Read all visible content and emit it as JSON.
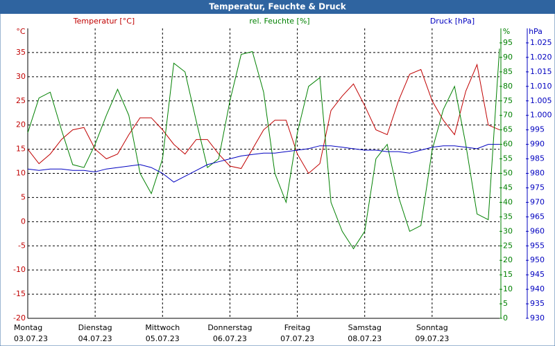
{
  "chart_data": {
    "type": "line",
    "title": "Temperatur, Feuchte & Druck",
    "ylabel": "°C",
    "y2label": "%",
    "y3label": "hPa",
    "x": [
      0,
      4,
      8,
      12,
      16,
      20,
      24,
      28,
      32,
      36,
      40,
      44,
      48,
      52,
      56,
      60,
      64,
      68,
      72,
      76,
      80,
      84,
      88,
      92,
      96,
      100,
      104,
      108,
      112,
      116,
      120,
      124,
      128,
      132,
      136,
      140,
      144,
      148,
      152,
      156,
      160,
      164,
      168
    ],
    "xlim": [
      0,
      168
    ],
    "xticks": [
      {
        "value": 0,
        "label": "Montag"
      },
      {
        "value": 24,
        "label": "Dienstag"
      },
      {
        "value": 48,
        "label": "Mittwoch"
      },
      {
        "value": 72,
        "label": "Donnerstag"
      },
      {
        "value": 96,
        "label": "Freitag"
      },
      {
        "value": 120,
        "label": "Samstag"
      },
      {
        "value": 144,
        "label": "Sonntag"
      }
    ],
    "xtick_dates": [
      "03.07.23",
      "04.07.23",
      "05.07.23",
      "06.07.23",
      "07.07.23",
      "08.07.23",
      "09.07.23"
    ],
    "ylim": [
      -20,
      40
    ],
    "yticks": [
      -20,
      -15,
      -10,
      -5,
      0,
      5,
      10,
      15,
      20,
      25,
      30,
      35
    ],
    "y2lim": [
      0,
      100
    ],
    "y2ticks": [
      0,
      5,
      10,
      15,
      20,
      25,
      30,
      35,
      40,
      45,
      50,
      55,
      60,
      65,
      70,
      75,
      80,
      85,
      90,
      95
    ],
    "y3lim": [
      930,
      1030
    ],
    "y3ticks": [
      930,
      935,
      940,
      945,
      950,
      955,
      960,
      965,
      970,
      975,
      980,
      985,
      990,
      995,
      {
        "value": 1000,
        "label": "1.000"
      },
      {
        "value": 1005,
        "label": "1.005"
      },
      {
        "value": 1010,
        "label": "1.010"
      },
      {
        "value": 1015,
        "label": "1.015"
      },
      {
        "value": 1020,
        "label": "1.020"
      },
      {
        "value": 1025,
        "label": "1.025"
      }
    ],
    "grid": true,
    "series": [
      {
        "name": "Temperatur [°C]",
        "color": "#c00000",
        "axis": "y",
        "values": [
          15,
          12,
          14,
          17,
          19,
          19.5,
          15,
          13,
          14,
          18,
          21.5,
          21.5,
          19,
          16,
          14,
          17,
          17,
          14,
          11.5,
          11,
          15,
          19,
          21,
          21,
          14,
          10,
          12,
          23,
          26,
          28.5,
          24,
          19,
          18,
          25,
          30.5,
          31.5,
          25,
          21,
          18,
          27,
          32.5,
          20,
          19
        ]
      },
      {
        "name": "rel. Feuchte [%]",
        "color": "#008000",
        "axis": "y2",
        "values": [
          64,
          76,
          78,
          65,
          53,
          52,
          60,
          70,
          79,
          70,
          50,
          43,
          55,
          88,
          85,
          68,
          52,
          55,
          75,
          91,
          92,
          78,
          50,
          40,
          64,
          80,
          83,
          40,
          30,
          24,
          30,
          55,
          60,
          42,
          30,
          32,
          58,
          72,
          80,
          60,
          36,
          34,
          93
        ]
      },
      {
        "name": "Druck [hPa]",
        "color": "#0000c0",
        "axis": "y3",
        "values": [
          981.5,
          981,
          981.5,
          981.5,
          981,
          981,
          980.5,
          981.5,
          982,
          982.5,
          983,
          982,
          980,
          977,
          979,
          981,
          983,
          984,
          985,
          986,
          986.5,
          987,
          987,
          987.5,
          988,
          988.5,
          989.5,
          989.5,
          989,
          988.5,
          988,
          988,
          987.5,
          987.5,
          987,
          988,
          989,
          989.5,
          989.5,
          989,
          988.5,
          990,
          990
        ]
      }
    ]
  }
}
